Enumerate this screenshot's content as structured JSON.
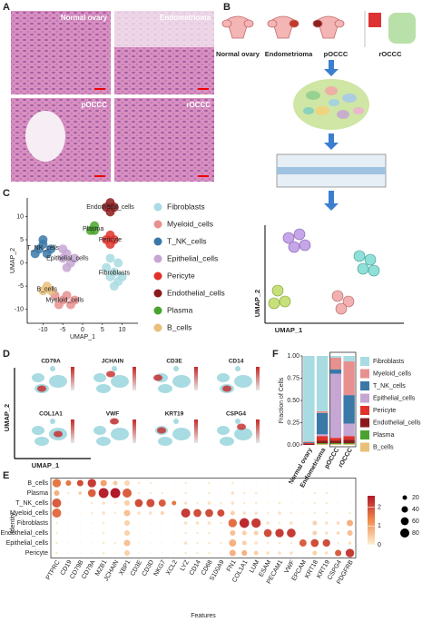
{
  "panel_labels": [
    "A",
    "B",
    "C",
    "D",
    "E",
    "F"
  ],
  "panel_a": {
    "images": [
      "Normal ovary",
      "Endometrioma",
      "pOCCC",
      "rOCCC"
    ]
  },
  "panel_b": {
    "stages": [
      "Normal ovary",
      "Endometrioma",
      "pOCCC",
      "rOCCC"
    ],
    "x_label": "UMAP_1",
    "y_label": "UMAP_2"
  },
  "panel_d": {
    "genes": [
      "CD79A",
      "JCHAIN",
      "CD3E",
      "CD14",
      "COL1A1",
      "VWF",
      "KRT19",
      "CSPG4"
    ],
    "x_label": "UMAP_1",
    "y_label": "UMAP_2"
  },
  "chart_data": [
    {
      "type": "scatter",
      "x_label": "UMAP_1",
      "y_label": "UMAP_2",
      "xlim": [
        -14,
        14
      ],
      "ylim": [
        -13,
        14
      ],
      "xticks": [
        -10,
        -5,
        0,
        5,
        10
      ],
      "yticks": [
        -10,
        -5,
        0,
        5,
        10
      ],
      "series": [
        {
          "name": "Fibroblasts",
          "color": "#a8dbe2",
          "x": [
            6,
            7,
            8,
            9,
            10,
            8,
            7,
            9
          ],
          "y": [
            -1,
            -3,
            -2,
            0,
            -3,
            -5,
            1,
            -4
          ]
        },
        {
          "name": "Myeloid_cells",
          "color": "#e8908f",
          "x": [
            -7,
            -5,
            -3,
            -6,
            -4,
            -2
          ],
          "y": [
            -7,
            -8,
            -9,
            -9,
            -7,
            -8
          ]
        },
        {
          "name": "T_NK_cells",
          "color": "#3a78a8",
          "x": [
            -11,
            -10,
            -9,
            -12,
            -8,
            -10
          ],
          "y": [
            3,
            4,
            2,
            2,
            3,
            5
          ]
        },
        {
          "name": "Epithelial_cells",
          "color": "#c6a6d3",
          "x": [
            -5,
            -4,
            -3,
            -4,
            -2,
            -5
          ],
          "y": [
            1,
            2,
            0,
            -1,
            1,
            3
          ]
        },
        {
          "name": "Pericyte",
          "color": "#e0322b",
          "x": [
            6,
            7,
            8,
            7
          ],
          "y": [
            5,
            6,
            5,
            4
          ]
        },
        {
          "name": "Endothelial_cells",
          "color": "#8b1a1a",
          "x": [
            6,
            7,
            8,
            7
          ],
          "y": [
            12,
            13,
            12,
            11
          ]
        },
        {
          "name": "Plasma",
          "color": "#4aa32e",
          "x": [
            2,
            3,
            3
          ],
          "y": [
            7,
            8,
            7
          ]
        },
        {
          "name": "B_cells",
          "color": "#e8c07a",
          "x": [
            -10,
            -9,
            -8
          ],
          "y": [
            -6,
            -5,
            -6
          ]
        }
      ]
    },
    {
      "type": "dot",
      "x_label": "Features",
      "y_label": "Identity",
      "categories": [
        "PTPRC",
        "CD19",
        "CD79B",
        "CD79A",
        "MZB1",
        "JCHAIN",
        "XBP1",
        "CD3E",
        "CD3D",
        "NKG7",
        "XCL2",
        "LYZ",
        "CD14",
        "CD68",
        "S100A9",
        "FN1",
        "COL1A1",
        "LUM",
        "ESAM",
        "PECAM1",
        "VWF",
        "EPCAM",
        "KRT18",
        "KRT19",
        "CSPG4",
        "PDGFRB"
      ],
      "color_lim": [
        0,
        2.6
      ],
      "color_ticks": [
        0,
        1,
        2
      ],
      "size_ticks": [
        20,
        40,
        60,
        80
      ],
      "series": [
        {
          "name": "B_cells",
          "pct": [
            70,
            30,
            40,
            70,
            40,
            20,
            30,
            5,
            5,
            2,
            2,
            5,
            2,
            5,
            2,
            5,
            2,
            2,
            2,
            2,
            2,
            2,
            2,
            2,
            2,
            2
          ],
          "avg_exp": [
            1.5,
            1.5,
            2.0,
            2.2,
            1.0,
            0.5,
            0.3,
            0.1,
            0.1,
            0,
            0,
            0.1,
            0,
            0.1,
            0,
            0.1,
            0,
            0,
            0,
            0,
            0,
            0,
            0,
            0,
            0,
            0
          ]
        },
        {
          "name": "Plasma",
          "pct": [
            30,
            5,
            10,
            60,
            95,
            95,
            80,
            5,
            5,
            5,
            2,
            5,
            2,
            5,
            2,
            10,
            5,
            5,
            2,
            2,
            2,
            2,
            5,
            5,
            2,
            2
          ],
          "avg_exp": [
            0.8,
            0.1,
            0.5,
            1.8,
            2.5,
            2.6,
            1.8,
            0.1,
            0.1,
            0.1,
            0,
            0.1,
            0,
            0.1,
            0,
            0.2,
            0.1,
            0.1,
            0,
            0,
            0,
            0,
            0.1,
            0.1,
            0,
            0
          ]
        },
        {
          "name": "T_NK_cells",
          "pct": [
            80,
            2,
            2,
            5,
            10,
            5,
            30,
            60,
            65,
            50,
            20,
            10,
            5,
            10,
            5,
            10,
            5,
            5,
            2,
            5,
            2,
            2,
            5,
            5,
            2,
            2
          ],
          "avg_exp": [
            1.8,
            0,
            0,
            0.1,
            0.2,
            0.1,
            0.4,
            2.0,
            2.0,
            1.8,
            1.5,
            0.2,
            0.1,
            0.2,
            0.1,
            0.2,
            0.1,
            0.1,
            0,
            0.1,
            0,
            0,
            0.1,
            0.1,
            0,
            0
          ]
        },
        {
          "name": "Myeloid_cells",
          "pct": [
            80,
            2,
            2,
            5,
            10,
            5,
            40,
            10,
            10,
            15,
            2,
            80,
            60,
            60,
            50,
            20,
            10,
            10,
            5,
            10,
            5,
            2,
            5,
            5,
            2,
            5
          ],
          "avg_exp": [
            1.6,
            0,
            0,
            0.1,
            0.2,
            0.1,
            0.6,
            0.2,
            0.2,
            0.3,
            0,
            2.2,
            2.0,
            2.0,
            2.0,
            0.4,
            0.2,
            0.2,
            0.1,
            0.2,
            0.1,
            0,
            0.1,
            0.1,
            0,
            0.1
          ]
        },
        {
          "name": "Fibroblasts",
          "pct": [
            5,
            2,
            2,
            2,
            5,
            2,
            30,
            2,
            2,
            2,
            2,
            10,
            10,
            10,
            5,
            70,
            90,
            85,
            10,
            5,
            10,
            2,
            20,
            10,
            10,
            40
          ],
          "avg_exp": [
            0.1,
            0,
            0,
            0,
            0.1,
            0,
            0.4,
            0,
            0,
            0,
            0,
            0.2,
            0.2,
            0.2,
            0.1,
            1.6,
            2.4,
            2.2,
            0.2,
            0.1,
            0.2,
            0,
            0.4,
            0.2,
            0.3,
            0.8
          ]
        },
        {
          "name": "Endothelial_cells",
          "pct": [
            5,
            2,
            2,
            2,
            5,
            2,
            30,
            2,
            2,
            2,
            2,
            5,
            5,
            5,
            2,
            30,
            20,
            20,
            60,
            70,
            75,
            2,
            20,
            10,
            10,
            30
          ],
          "avg_exp": [
            0.1,
            0,
            0,
            0,
            0.1,
            0,
            0.4,
            0,
            0,
            0,
            0,
            0.1,
            0.1,
            0.1,
            0,
            0.6,
            0.4,
            0.4,
            2.0,
            2.2,
            2.2,
            0,
            0.4,
            0.2,
            0.3,
            0.6
          ]
        },
        {
          "name": "Epithelial_cells",
          "pct": [
            5,
            2,
            2,
            2,
            5,
            5,
            40,
            2,
            2,
            2,
            2,
            10,
            5,
            5,
            5,
            50,
            20,
            10,
            5,
            5,
            5,
            50,
            60,
            55,
            5,
            10
          ],
          "avg_exp": [
            0.1,
            0,
            0,
            0,
            0.1,
            0.1,
            0.6,
            0,
            0,
            0,
            0,
            0.2,
            0.1,
            0.1,
            0.1,
            0.8,
            0.4,
            0.2,
            0.1,
            0.1,
            0.1,
            1.8,
            2.0,
            2.0,
            0.1,
            0.2
          ]
        },
        {
          "name": "Pericyte",
          "pct": [
            5,
            2,
            2,
            2,
            5,
            2,
            30,
            2,
            2,
            2,
            2,
            5,
            5,
            5,
            2,
            40,
            30,
            20,
            10,
            10,
            10,
            2,
            20,
            10,
            40,
            70
          ],
          "avg_exp": [
            0.1,
            0,
            0,
            0,
            0.1,
            0,
            0.4,
            0,
            0,
            0,
            0,
            0.1,
            0.1,
            0.1,
            0,
            0.8,
            0.8,
            0.4,
            0.2,
            0.2,
            0.2,
            0,
            0.4,
            0.2,
            1.8,
            2.2
          ]
        }
      ]
    },
    {
      "type": "stacked_bar",
      "y_label": "Fraction of Cells",
      "categories": [
        "Normal ovary",
        "Endometrioma",
        "pOCCC",
        "rOCCC"
      ],
      "ylim": [
        0,
        1
      ],
      "yticks": [
        {
          "value": 0,
          "label": "0.00"
        },
        {
          "value": 0.25,
          "label": "0.25"
        },
        {
          "value": 0.5,
          "label": "0.50"
        },
        {
          "value": 0.75,
          "label": "0.75"
        },
        {
          "value": 1,
          "label": "1.00"
        }
      ],
      "series": [
        {
          "name": "Fibroblasts",
          "color": "#a8dbe2",
          "values": [
            0.96,
            0.62,
            0.02,
            0.06
          ]
        },
        {
          "name": "Myeloid_cells",
          "color": "#e8908f",
          "values": [
            0.01,
            0.02,
            0.13,
            0.38
          ]
        },
        {
          "name": "T_NK_cells",
          "color": "#3a78a8",
          "values": [
            0.01,
            0.24,
            0.05,
            0.32
          ]
        },
        {
          "name": "Epithelial_cells",
          "color": "#c6a6d3",
          "values": [
            0.0,
            0.02,
            0.72,
            0.14
          ]
        },
        {
          "name": "Pericyte",
          "color": "#e0322b",
          "values": [
            0.01,
            0.05,
            0.03,
            0.04
          ]
        },
        {
          "name": "Endothelial_cells",
          "color": "#8b1a1a",
          "values": [
            0.01,
            0.03,
            0.03,
            0.04
          ]
        },
        {
          "name": "Plasma",
          "color": "#4aa32e",
          "values": [
            0.0,
            0.01,
            0.01,
            0.01
          ]
        },
        {
          "name": "B_cells",
          "color": "#e8c07a",
          "values": [
            0.0,
            0.01,
            0.01,
            0.01
          ]
        }
      ]
    }
  ]
}
